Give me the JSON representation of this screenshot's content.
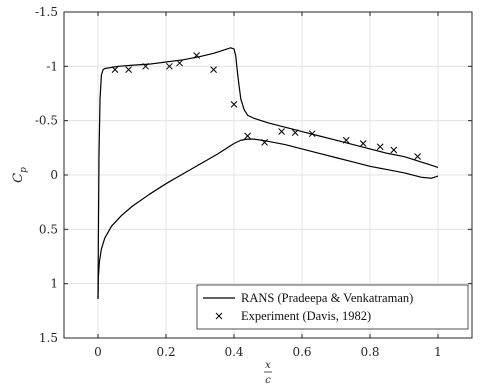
{
  "chart_data": {
    "type": "line",
    "title": "",
    "xlabel": "x/c",
    "ylabel": "C_p",
    "xlim": [
      -0.1,
      1.1
    ],
    "ylim": [
      -1.5,
      1.5
    ],
    "y_reversed": true,
    "grid": true,
    "legend_position": "bottom-right",
    "xticks": [
      0,
      0.2,
      0.4,
      0.6,
      0.8,
      1
    ],
    "xtick_labels": [
      "0",
      "0.2",
      "0.4",
      "0.6",
      "0.8",
      "1"
    ],
    "yticks": [
      -1.5,
      -1,
      -0.5,
      0,
      0.5,
      1,
      1.5
    ],
    "ytick_labels": [
      "-1.5",
      "-1",
      "-0.5",
      "0",
      "0.5",
      "1",
      "1.5"
    ],
    "series": [
      {
        "name": "RANS (Pradeepa & Venkatraman)",
        "style": "line",
        "color": "#000000",
        "x": [
          0.0,
          0.001,
          0.003,
          0.006,
          0.01,
          0.015,
          0.02,
          0.04,
          0.06,
          0.1,
          0.15,
          0.2,
          0.25,
          0.3,
          0.34,
          0.37,
          0.39,
          0.4,
          0.405,
          0.41,
          0.415,
          0.42,
          0.43,
          0.44,
          0.46,
          0.5,
          0.55,
          0.6,
          0.65,
          0.7,
          0.75,
          0.8,
          0.85,
          0.9,
          0.95,
          0.98,
          1.0
        ],
        "y": [
          1.14,
          0.6,
          -0.2,
          -0.7,
          -0.92,
          -0.97,
          -0.98,
          -0.99,
          -1.0,
          -1.01,
          -1.02,
          -1.04,
          -1.06,
          -1.09,
          -1.12,
          -1.15,
          -1.17,
          -1.16,
          -1.1,
          -0.95,
          -0.82,
          -0.7,
          -0.6,
          -0.55,
          -0.52,
          -0.48,
          -0.44,
          -0.4,
          -0.36,
          -0.32,
          -0.28,
          -0.24,
          -0.2,
          -0.17,
          -0.12,
          -0.09,
          -0.07
        ]
      },
      {
        "name": "",
        "style": "line",
        "color": "#000000",
        "x": [
          0.0,
          0.001,
          0.004,
          0.01,
          0.02,
          0.04,
          0.07,
          0.1,
          0.15,
          0.2,
          0.25,
          0.3,
          0.35,
          0.38,
          0.4,
          0.42,
          0.44,
          0.46,
          0.5,
          0.55,
          0.6,
          0.65,
          0.7,
          0.75,
          0.8,
          0.85,
          0.9,
          0.95,
          0.98,
          1.0
        ],
        "y": [
          1.14,
          0.95,
          0.8,
          0.68,
          0.58,
          0.47,
          0.37,
          0.29,
          0.18,
          0.08,
          -0.01,
          -0.1,
          -0.19,
          -0.25,
          -0.29,
          -0.32,
          -0.33,
          -0.33,
          -0.31,
          -0.28,
          -0.24,
          -0.2,
          -0.16,
          -0.12,
          -0.08,
          -0.05,
          -0.02,
          0.02,
          0.03,
          0.01
        ]
      },
      {
        "name": "Experiment (Davis, 1982)",
        "style": "marker",
        "marker": "x",
        "color": "#000000",
        "x": [
          0.05,
          0.09,
          0.14,
          0.21,
          0.24,
          0.29,
          0.34,
          0.4,
          0.44,
          0.49,
          0.54,
          0.58,
          0.63,
          0.73,
          0.78,
          0.83,
          0.87,
          0.94
        ],
        "y": [
          -0.97,
          -0.97,
          -1.0,
          -1.0,
          -1.03,
          -1.1,
          -0.97,
          -0.65,
          -0.36,
          -0.3,
          -0.4,
          -0.39,
          -0.38,
          -0.32,
          -0.29,
          -0.26,
          -0.23,
          -0.17
        ]
      }
    ]
  }
}
